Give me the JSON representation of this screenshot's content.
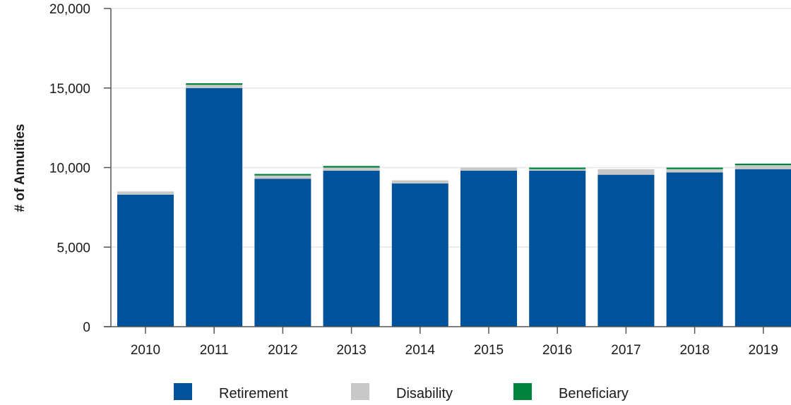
{
  "chart_data": {
    "type": "bar",
    "stacked": true,
    "title": "",
    "xlabel": "",
    "ylabel": "# of Annuities",
    "ylim": [
      0,
      20000
    ],
    "yticks": [
      0,
      5000,
      10000,
      15000,
      20000
    ],
    "ytick_labels": [
      "0",
      "5,000",
      "10,000",
      "15,000",
      "20,000"
    ],
    "categories": [
      "2010",
      "2011",
      "2012",
      "2013",
      "2014",
      "2015",
      "2016",
      "2017",
      "2018",
      "2019"
    ],
    "grid": true,
    "legend_position": "bottom",
    "series": [
      {
        "name": "Retirement",
        "color": "#00539b",
        "values": [
          8300,
          15000,
          9300,
          9800,
          9000,
          9800,
          9800,
          9550,
          9700,
          9900
        ]
      },
      {
        "name": "Disability",
        "color": "#c8c8c8",
        "values": [
          200,
          200,
          200,
          200,
          200,
          200,
          100,
          350,
          200,
          250
        ]
      },
      {
        "name": "Beneficiary",
        "color": "#00843d",
        "values": [
          0,
          100,
          100,
          100,
          0,
          0,
          100,
          0,
          100,
          100
        ]
      }
    ]
  }
}
